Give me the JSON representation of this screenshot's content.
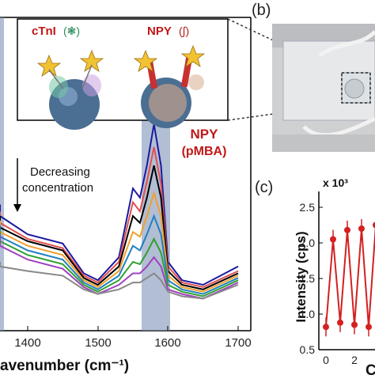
{
  "panel_a": {
    "inset": {
      "left_label": "cTnI",
      "right_label": "NPY"
    },
    "annotation": {
      "arrow_text_line1": "Decreasing",
      "arrow_text_line2": "concentration",
      "peak_label_line1": "NPY",
      "peak_label_line2": "(pMBA)"
    },
    "x_ticks": [
      "1400",
      "1500",
      "1600",
      "1700"
    ],
    "x_axis_label": "avenumber (cm⁻¹)"
  },
  "panel_b": {
    "label": "(b)"
  },
  "panel_c": {
    "label": "(c)",
    "y_axis_label": "Intensity (cps)",
    "y_multiplier": "x 10³",
    "y_ticks": [
      "2.5",
      "2.0",
      "1.5",
      "1.0",
      "0.5"
    ],
    "x_ticks": [
      "0",
      "2"
    ],
    "x_label_fragment": "C"
  },
  "colors": {
    "spectra": [
      "#1a1aa0",
      "#e05050",
      "#000000",
      "#f0a030",
      "#2080c0",
      "#30a030",
      "#a040c0",
      "#888888"
    ],
    "peak_band": "#7f93b5",
    "intensity_series": "#d42020"
  },
  "chart_data": [
    {
      "type": "line",
      "x_unit": "cm^-1",
      "xlim": [
        1300,
        1700
      ],
      "series": [
        {
          "color": "#1a1aa0",
          "x": [
            1300,
            1350,
            1400,
            1450,
            1480,
            1500,
            1530,
            1550,
            1560,
            1570,
            1580,
            1590,
            1600,
            1620,
            1650,
            1700
          ],
          "y": [
            0.55,
            0.5,
            0.42,
            0.38,
            0.25,
            0.22,
            0.32,
            0.62,
            0.58,
            0.72,
            0.9,
            0.72,
            0.3,
            0.22,
            0.2,
            0.28
          ]
        },
        {
          "color": "#e05050",
          "x": [
            1300,
            1350,
            1400,
            1450,
            1480,
            1500,
            1530,
            1550,
            1560,
            1570,
            1580,
            1590,
            1600,
            1620,
            1650,
            1700
          ],
          "y": [
            0.52,
            0.47,
            0.4,
            0.36,
            0.24,
            0.21,
            0.3,
            0.56,
            0.52,
            0.65,
            0.8,
            0.64,
            0.28,
            0.21,
            0.19,
            0.26
          ]
        },
        {
          "color": "#000000",
          "x": [
            1300,
            1350,
            1400,
            1450,
            1480,
            1500,
            1530,
            1550,
            1560,
            1570,
            1580,
            1590,
            1600,
            1620,
            1650,
            1700
          ],
          "y": [
            0.5,
            0.45,
            0.39,
            0.35,
            0.23,
            0.2,
            0.28,
            0.5,
            0.47,
            0.58,
            0.72,
            0.58,
            0.26,
            0.2,
            0.18,
            0.25
          ]
        },
        {
          "color": "#f0a030",
          "x": [
            1300,
            1350,
            1400,
            1450,
            1480,
            1500,
            1530,
            1550,
            1560,
            1570,
            1580,
            1590,
            1600,
            1620,
            1650,
            1700
          ],
          "y": [
            0.48,
            0.43,
            0.37,
            0.33,
            0.22,
            0.19,
            0.26,
            0.43,
            0.41,
            0.5,
            0.6,
            0.5,
            0.24,
            0.19,
            0.17,
            0.24
          ]
        },
        {
          "color": "#2080c0",
          "x": [
            1300,
            1350,
            1400,
            1450,
            1480,
            1500,
            1530,
            1550,
            1560,
            1570,
            1580,
            1590,
            1600,
            1620,
            1650,
            1700
          ],
          "y": [
            0.46,
            0.41,
            0.35,
            0.31,
            0.21,
            0.18,
            0.24,
            0.37,
            0.35,
            0.42,
            0.5,
            0.42,
            0.22,
            0.18,
            0.16,
            0.23
          ]
        },
        {
          "color": "#30a030",
          "x": [
            1300,
            1350,
            1400,
            1450,
            1480,
            1500,
            1530,
            1550,
            1560,
            1570,
            1580,
            1590,
            1600,
            1620,
            1650,
            1700
          ],
          "y": [
            0.44,
            0.39,
            0.33,
            0.29,
            0.2,
            0.17,
            0.22,
            0.3,
            0.29,
            0.34,
            0.4,
            0.34,
            0.2,
            0.17,
            0.15,
            0.22
          ]
        },
        {
          "color": "#a040c0",
          "x": [
            1300,
            1350,
            1400,
            1450,
            1480,
            1500,
            1530,
            1550,
            1560,
            1570,
            1580,
            1590,
            1600,
            1620,
            1650,
            1700
          ],
          "y": [
            0.42,
            0.37,
            0.31,
            0.27,
            0.19,
            0.16,
            0.2,
            0.25,
            0.25,
            0.28,
            0.32,
            0.28,
            0.18,
            0.16,
            0.14,
            0.21
          ]
        },
        {
          "color": "#888888",
          "x": [
            1300,
            1350,
            1400,
            1450,
            1480,
            1500,
            1530,
            1550,
            1560,
            1570,
            1580,
            1590,
            1600,
            1620,
            1650,
            1700
          ],
          "y": [
            0.3,
            0.28,
            0.26,
            0.24,
            0.18,
            0.16,
            0.18,
            0.21,
            0.21,
            0.23,
            0.25,
            0.22,
            0.17,
            0.15,
            0.14,
            0.2
          ]
        }
      ]
    },
    {
      "type": "line",
      "ylim": [
        0.5,
        2.5
      ],
      "y_multiplier": 1000,
      "ylabel": "Intensity (cps)",
      "series": [
        {
          "color": "#d42020",
          "x": [
            0,
            0.5,
            1,
            1.5,
            2,
            2.5,
            3,
            3.5
          ],
          "y": [
            0.82,
            2.05,
            0.88,
            2.18,
            0.85,
            2.2,
            0.82,
            2.25
          ]
        }
      ]
    }
  ]
}
